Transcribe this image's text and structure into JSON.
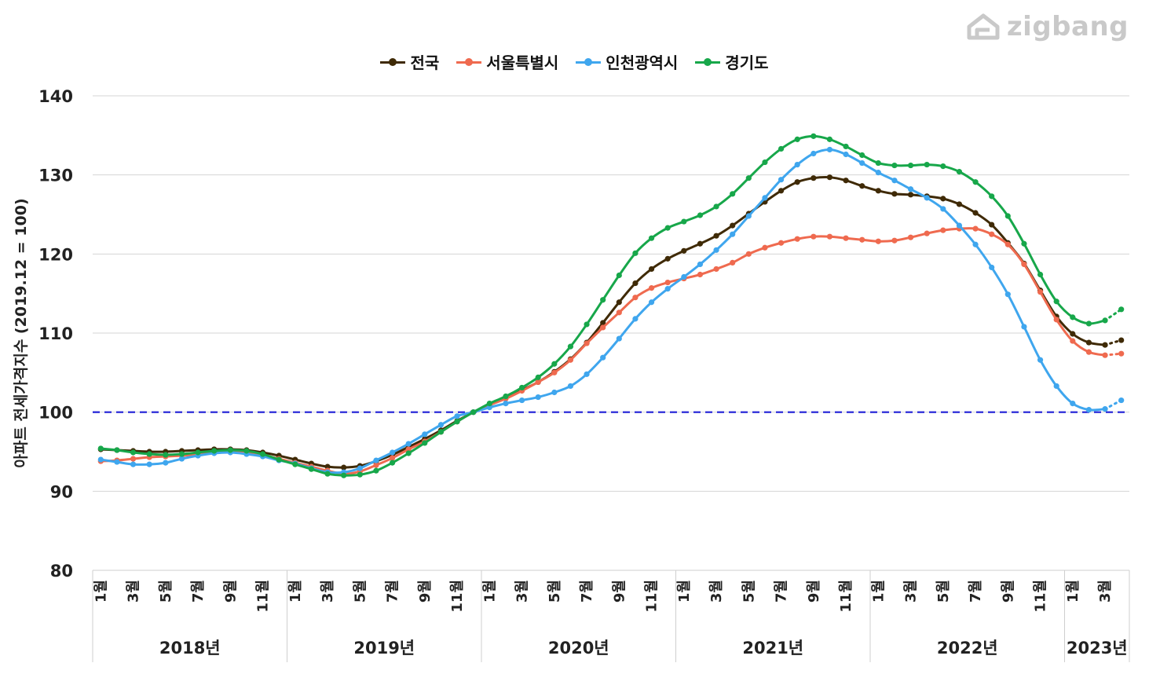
{
  "brand": {
    "name": "zigbang",
    "icon": "house-logo-icon",
    "color": "#c9c9c9"
  },
  "chart_data": {
    "type": "line",
    "title": "",
    "xlabel": "",
    "ylabel": "아파트 전세가격지수 (2019.12 = 100)",
    "ylim": [
      80,
      140
    ],
    "yticks": [
      80,
      90,
      100,
      110,
      120,
      130,
      140
    ],
    "grid": true,
    "legend_position": "top",
    "reference_line": {
      "y": 100,
      "color": "#1f1fd6",
      "style": "dashed"
    },
    "month_tick_labels": [
      "1월",
      "3월",
      "5월",
      "7월",
      "9월",
      "11월"
    ],
    "year_labels": [
      "2018년",
      "2019년",
      "2020년",
      "2021년",
      "2022년",
      "2023년"
    ],
    "x": [
      "2018-01",
      "2018-02",
      "2018-03",
      "2018-04",
      "2018-05",
      "2018-06",
      "2018-07",
      "2018-08",
      "2018-09",
      "2018-10",
      "2018-11",
      "2018-12",
      "2019-01",
      "2019-02",
      "2019-03",
      "2019-04",
      "2019-05",
      "2019-06",
      "2019-07",
      "2019-08",
      "2019-09",
      "2019-10",
      "2019-11",
      "2019-12",
      "2020-01",
      "2020-02",
      "2020-03",
      "2020-04",
      "2020-05",
      "2020-06",
      "2020-07",
      "2020-08",
      "2020-09",
      "2020-10",
      "2020-11",
      "2020-12",
      "2021-01",
      "2021-02",
      "2021-03",
      "2021-04",
      "2021-05",
      "2021-06",
      "2021-07",
      "2021-08",
      "2021-09",
      "2021-10",
      "2021-11",
      "2021-12",
      "2022-01",
      "2022-02",
      "2022-03",
      "2022-04",
      "2022-05",
      "2022-06",
      "2022-07",
      "2022-08",
      "2022-09",
      "2022-10",
      "2022-11",
      "2022-12",
      "2023-01",
      "2023-02",
      "2023-03",
      "2023-04"
    ],
    "projected_from_index": 62,
    "series": [
      {
        "name": "전국",
        "color": "#3f2a06",
        "values": [
          95.3,
          95.2,
          95.1,
          95.0,
          95.0,
          95.1,
          95.2,
          95.3,
          95.3,
          95.2,
          94.9,
          94.5,
          94.0,
          93.5,
          93.1,
          93.0,
          93.2,
          93.8,
          94.6,
          95.6,
          96.6,
          97.7,
          98.9,
          100.0,
          101.0,
          101.9,
          102.8,
          103.8,
          105.1,
          106.7,
          108.8,
          111.3,
          113.9,
          116.3,
          118.1,
          119.4,
          120.4,
          121.3,
          122.3,
          123.6,
          125.1,
          126.6,
          128.0,
          129.1,
          129.6,
          129.7,
          129.3,
          128.6,
          128.0,
          127.6,
          127.5,
          127.3,
          127.0,
          126.3,
          125.2,
          123.7,
          121.4,
          118.8,
          115.4,
          112.1,
          109.9,
          108.8,
          108.5,
          109.1
        ]
      },
      {
        "name": "서울특별시",
        "color": "#ef6a4f",
        "values": [
          93.8,
          93.9,
          94.1,
          94.3,
          94.4,
          94.5,
          94.7,
          94.9,
          95.0,
          94.9,
          94.6,
          94.1,
          93.6,
          93.1,
          92.6,
          92.2,
          92.5,
          93.3,
          94.2,
          95.3,
          96.3,
          97.5,
          98.8,
          100.0,
          100.9,
          101.7,
          102.7,
          103.8,
          105.0,
          106.6,
          108.7,
          110.7,
          112.6,
          114.5,
          115.7,
          116.4,
          116.9,
          117.4,
          118.1,
          118.9,
          120.0,
          120.8,
          121.4,
          121.9,
          122.2,
          122.2,
          122.0,
          121.8,
          121.6,
          121.7,
          122.1,
          122.6,
          123.0,
          123.2,
          123.2,
          122.5,
          121.2,
          118.7,
          115.2,
          111.7,
          109.0,
          107.6,
          107.2,
          107.4
        ]
      },
      {
        "name": "인천광역시",
        "color": "#3fa6ee",
        "values": [
          94.0,
          93.7,
          93.4,
          93.4,
          93.6,
          94.1,
          94.5,
          94.8,
          94.9,
          94.7,
          94.4,
          93.9,
          93.5,
          92.9,
          92.4,
          92.4,
          92.9,
          93.9,
          94.9,
          96.0,
          97.2,
          98.4,
          99.5,
          100.0,
          100.6,
          101.1,
          101.5,
          101.9,
          102.5,
          103.3,
          104.8,
          106.9,
          109.3,
          111.8,
          113.9,
          115.6,
          117.1,
          118.7,
          120.5,
          122.5,
          124.8,
          127.1,
          129.4,
          131.3,
          132.7,
          133.2,
          132.6,
          131.5,
          130.3,
          129.3,
          128.2,
          127.1,
          125.7,
          123.6,
          121.2,
          118.3,
          114.9,
          110.8,
          106.6,
          103.3,
          101.1,
          100.3,
          100.4,
          101.5
        ]
      },
      {
        "name": "경기도",
        "color": "#17a74a",
        "values": [
          95.4,
          95.2,
          94.9,
          94.7,
          94.6,
          94.7,
          94.9,
          95.1,
          95.2,
          95.1,
          94.7,
          94.0,
          93.4,
          92.8,
          92.2,
          92.0,
          92.1,
          92.6,
          93.6,
          94.8,
          96.1,
          97.5,
          98.8,
          100.0,
          101.1,
          102.0,
          103.1,
          104.4,
          106.1,
          108.3,
          111.1,
          114.2,
          117.3,
          120.1,
          122.0,
          123.3,
          124.1,
          124.9,
          126.0,
          127.6,
          129.6,
          131.6,
          133.3,
          134.5,
          134.9,
          134.5,
          133.6,
          132.5,
          131.5,
          131.2,
          131.2,
          131.3,
          131.1,
          130.4,
          129.1,
          127.3,
          124.8,
          121.3,
          117.4,
          114.0,
          112.0,
          111.2,
          111.6,
          113.0
        ]
      }
    ]
  }
}
